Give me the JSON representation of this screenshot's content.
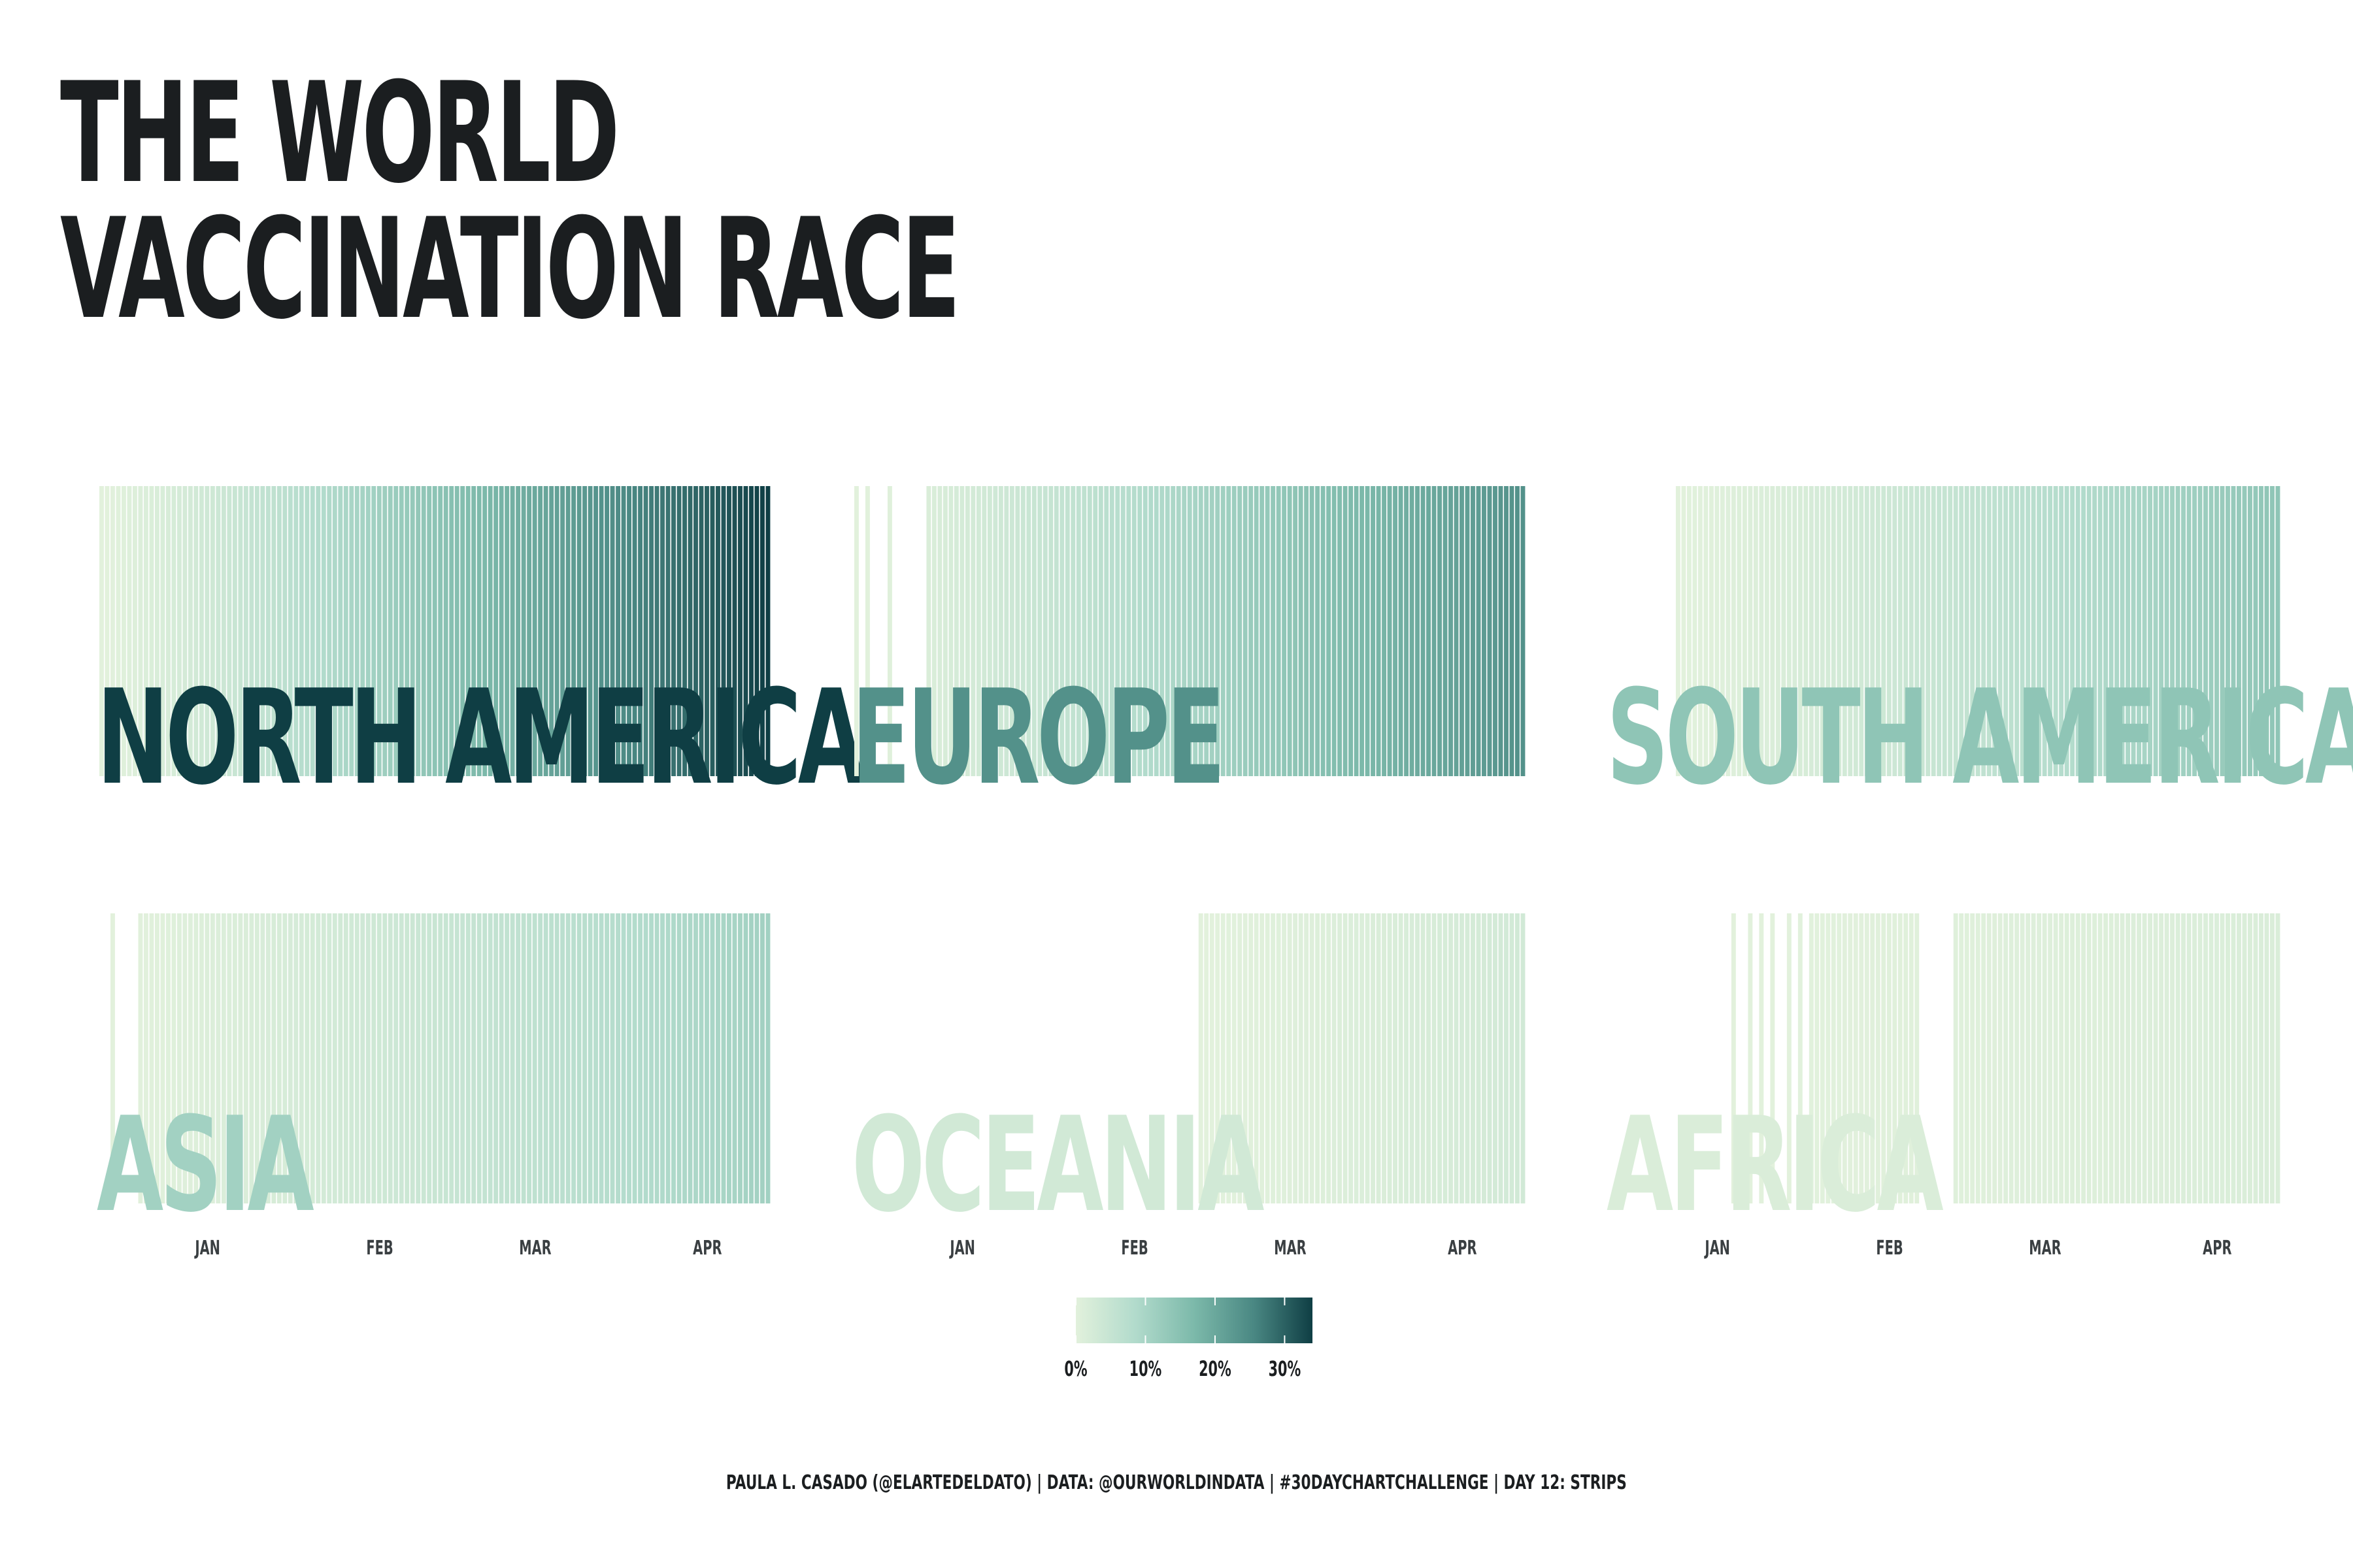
{
  "title": {
    "line1": "THE WORLD",
    "line2": "VACCINATION RACE"
  },
  "caption": "PAULA L. CASADO (@ELARTEDELDATO) | DATA: @OURWORLDINDATA | #30DAYCHARTCHALLENGE | DAY 12: STRIPS",
  "colors": {
    "scale": [
      "#e2f1dc",
      "#b2dbcc",
      "#7cb9aa",
      "#4a8883",
      "#0f3e44"
    ],
    "title": "#1b1e20",
    "gap": "#ffffff"
  },
  "chart_data": {
    "type": "heatmap",
    "encoding": "vertical stripes, one per day, colored by share of population vaccinated",
    "x_axis": {
      "ticks": [
        {
          "label": "JAN",
          "date": "2021-01-01"
        },
        {
          "label": "FEB",
          "date": "2021-02-01"
        },
        {
          "label": "MAR",
          "date": "2021-03-01"
        },
        {
          "label": "APR",
          "date": "2021-04-01"
        }
      ],
      "range": [
        "2020-12-13",
        "2021-04-12"
      ]
    },
    "legend": {
      "ticks": [
        "0%",
        "10%",
        "20%",
        "30%"
      ],
      "range": [
        0,
        34
      ],
      "position": "bottom-center"
    },
    "series": [
      {
        "name": "NORTH AMERICA",
        "start": "2020-12-13",
        "end": "2021-04-12",
        "peak": 34,
        "gaps": []
      },
      {
        "name": "EUROPE",
        "start": "2020-12-13",
        "end": "2021-04-12",
        "peak": 24,
        "gaps": [
          [
            "2020-12-14",
            "2020-12-15"
          ],
          [
            "2020-12-16",
            "2020-12-19"
          ],
          [
            "2020-12-20",
            "2020-12-26"
          ]
        ]
      },
      {
        "name": "SOUTH AMERICA",
        "start": "2020-12-25",
        "end": "2021-04-12",
        "peak": 14,
        "gaps": []
      },
      {
        "name": "ASIA",
        "start": "2020-12-15",
        "end": "2021-04-12",
        "peak": 11,
        "gaps": [
          [
            "2020-12-16",
            "2020-12-20"
          ]
        ]
      },
      {
        "name": "OCEANIA",
        "start": "2021-02-13",
        "end": "2021-04-12",
        "peak": 3,
        "gaps": []
      },
      {
        "name": "AFRICA",
        "start": "2021-01-04",
        "end": "2021-04-12",
        "peak": 1.5,
        "gaps": [
          [
            "2021-01-05",
            "2021-01-07"
          ],
          [
            "2021-01-08",
            "2021-01-09"
          ],
          [
            "2021-01-10",
            "2021-01-11"
          ],
          [
            "2021-01-12",
            "2021-01-14"
          ],
          [
            "2021-01-15",
            "2021-01-16"
          ],
          [
            "2021-01-17",
            "2021-01-18"
          ],
          [
            "2021-02-07",
            "2021-02-09"
          ],
          [
            "2021-02-09",
            "2021-02-13"
          ]
        ]
      }
    ]
  }
}
